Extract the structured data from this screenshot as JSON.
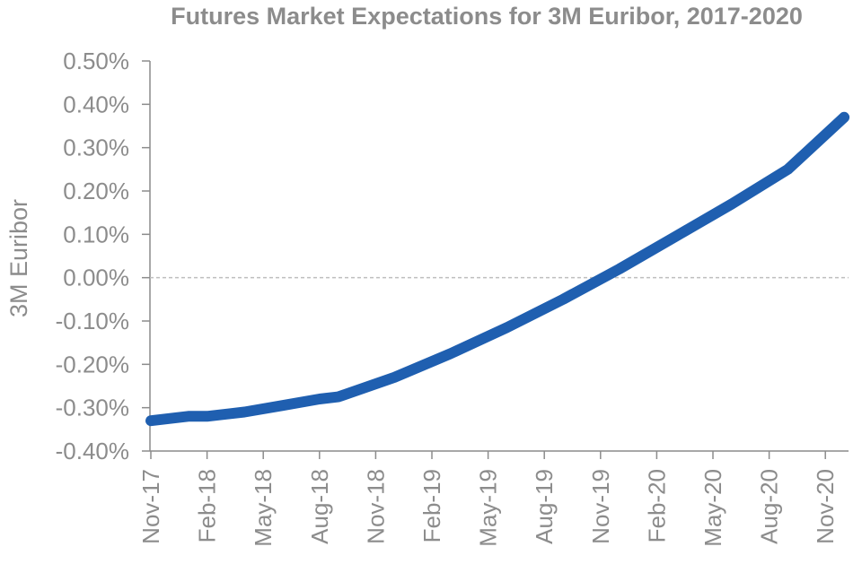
{
  "chart_data": {
    "type": "line",
    "title": "Futures Market Expectations for 3M Euribor, 2017-2020",
    "xlabel": "",
    "ylabel": "3M Euribor",
    "ylim": [
      -0.4,
      0.5
    ],
    "yticks": [
      "-0.40%",
      "-0.30%",
      "-0.20%",
      "-0.10%",
      "0.00%",
      "0.10%",
      "0.20%",
      "0.30%",
      "0.40%",
      "0.50%"
    ],
    "ytick_values": [
      -0.4,
      -0.3,
      -0.2,
      -0.1,
      0.0,
      0.1,
      0.2,
      0.3,
      0.4,
      0.5
    ],
    "categories": [
      "Nov-17",
      "Feb-18",
      "May-18",
      "Aug-18",
      "Nov-18",
      "Feb-19",
      "May-19",
      "Aug-19",
      "Nov-19",
      "Feb-20",
      "May-20",
      "Aug-20",
      "Nov-20"
    ],
    "series": [
      {
        "x": [
          "Nov-17",
          "Jan-18",
          "Feb-18",
          "Apr-18",
          "Jun-18",
          "Aug-18",
          "Sep-18",
          "Dec-18",
          "Mar-19",
          "Jun-19",
          "Sep-19",
          "Dec-19",
          "Mar-20",
          "Jun-20",
          "Sep-20",
          "Dec-20"
        ],
        "values": [
          -0.33,
          -0.32,
          -0.32,
          -0.31,
          -0.295,
          -0.28,
          -0.275,
          -0.23,
          -0.175,
          -0.115,
          -0.05,
          0.02,
          0.095,
          0.17,
          0.25,
          0.37
        ]
      }
    ],
    "reference_line": {
      "y": 0.0,
      "style": "dashed"
    },
    "grid": false,
    "legend": "none",
    "colors": {
      "line": "#1f5fb0",
      "text": "#8c8c8c",
      "axis": "#8c8c8c",
      "zero_line": "#bfbfbf"
    }
  }
}
